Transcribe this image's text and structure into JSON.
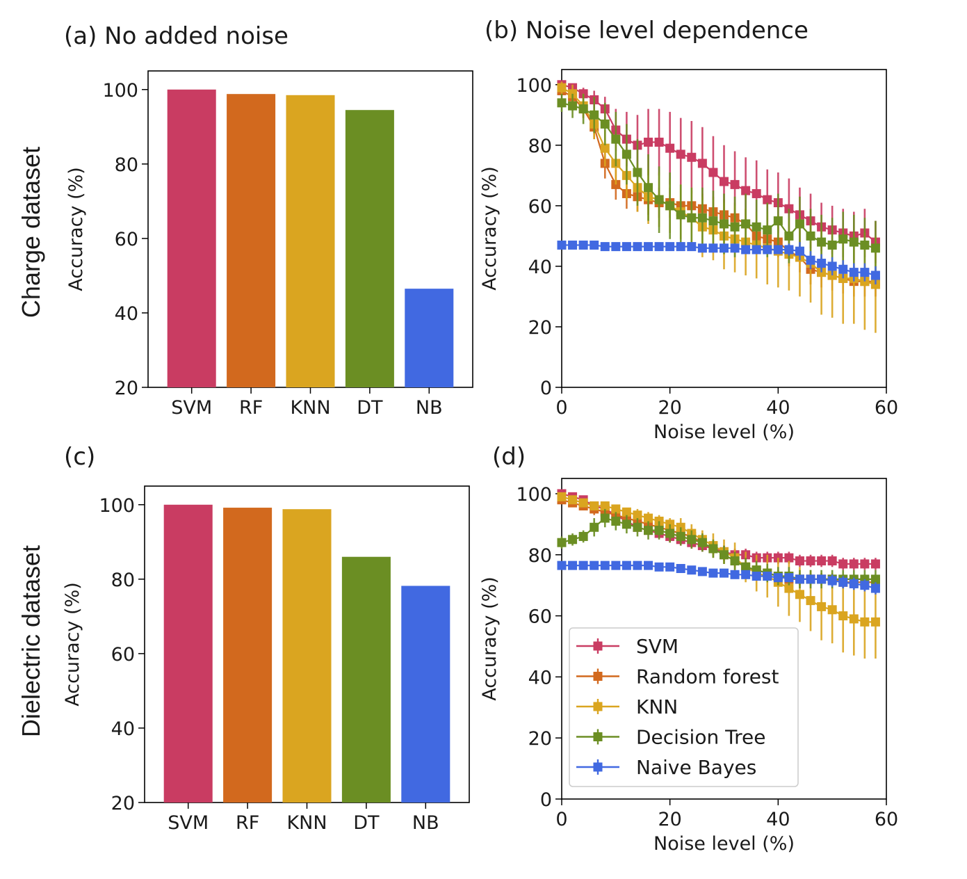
{
  "row_labels": [
    "Charge dataset",
    "Dielectric dataset"
  ],
  "legend": [
    {
      "name": "SVM",
      "color": "#C93C62"
    },
    {
      "name": "Random forest",
      "color": "#D2691E"
    },
    {
      "name": "KNN",
      "color": "#DAA520"
    },
    {
      "name": "Decision Tree",
      "color": "#6B8E23"
    },
    {
      "name": "Naive Bayes",
      "color": "#4169E1"
    }
  ],
  "chart_data": [
    {
      "id": "a",
      "type": "bar",
      "title": "(a) No added noise",
      "categories": [
        "SVM",
        "RF",
        "KNN",
        "DT",
        "NB"
      ],
      "values": [
        100,
        98.8,
        98.5,
        94.5,
        46.5
      ],
      "colors": [
        "#C93C62",
        "#D2691E",
        "#DAA520",
        "#6B8E23",
        "#4169E1"
      ],
      "xlabel": "",
      "ylabel": "Accuracy (%)",
      "ylim": [
        20,
        105
      ],
      "yticks": [
        20,
        40,
        60,
        80,
        100
      ]
    },
    {
      "id": "b",
      "type": "line",
      "title": "(b) Noise level dependence",
      "xlabel": "Noise level (%)",
      "ylabel": "Accuracy (%)",
      "xlim": [
        0,
        60
      ],
      "ylim": [
        0,
        105
      ],
      "xticks": [
        0,
        20,
        40,
        60
      ],
      "yticks": [
        0,
        20,
        40,
        60,
        80,
        100
      ],
      "x": [
        0,
        2,
        4,
        6,
        8,
        10,
        12,
        14,
        16,
        18,
        20,
        22,
        24,
        26,
        28,
        30,
        32,
        34,
        36,
        38,
        40,
        42,
        44,
        46,
        48,
        50,
        52,
        54,
        56,
        58
      ],
      "series": [
        {
          "name": "SVM",
          "color": "#C93C62",
          "values": [
            100,
            99,
            97,
            95,
            92,
            85,
            82,
            80,
            81,
            81,
            79,
            77,
            76,
            74,
            71,
            68,
            67,
            65,
            64,
            62,
            61,
            59,
            57,
            55,
            53,
            52,
            51,
            50,
            51,
            48
          ],
          "err": [
            1,
            1,
            2,
            3,
            4,
            7,
            9,
            10,
            11,
            11,
            12,
            12,
            12,
            12,
            12,
            12,
            11,
            11,
            11,
            10,
            10,
            10,
            9,
            9,
            8,
            8,
            8,
            8,
            8,
            7
          ]
        },
        {
          "name": "Random forest",
          "color": "#D2691E",
          "values": [
            98,
            96,
            92,
            86,
            74,
            67,
            64,
            63,
            62,
            61,
            61,
            60,
            60,
            59,
            58,
            57,
            56,
            54,
            50,
            49,
            48,
            45,
            43,
            39,
            38,
            37,
            36,
            35,
            35,
            35
          ],
          "err": [
            1,
            2,
            3,
            4,
            5,
            5,
            5,
            5,
            5,
            5,
            5,
            5,
            5,
            5,
            5,
            5,
            5,
            5,
            5,
            5,
            5,
            5,
            5,
            5,
            5,
            5,
            5,
            5,
            5,
            5
          ]
        },
        {
          "name": "KNN",
          "color": "#DAA520",
          "values": [
            99,
            97,
            93,
            87,
            79,
            74,
            70,
            66,
            63,
            62,
            60,
            58,
            56,
            53,
            52,
            50,
            49,
            48,
            47,
            46,
            45,
            44,
            43,
            41,
            38,
            37,
            36,
            36,
            35,
            34
          ],
          "err": [
            2,
            3,
            4,
            5,
            6,
            7,
            8,
            8,
            9,
            9,
            9,
            9,
            10,
            10,
            10,
            11,
            11,
            11,
            11,
            12,
            12,
            12,
            13,
            13,
            14,
            14,
            15,
            15,
            16,
            16
          ]
        },
        {
          "name": "Decision Tree",
          "color": "#6B8E23",
          "values": [
            94,
            93,
            92,
            90,
            87,
            82,
            77,
            71,
            66,
            62,
            60,
            57,
            56,
            56,
            55,
            54,
            53,
            54,
            53,
            52,
            55,
            50,
            54,
            50,
            48,
            47,
            49,
            48,
            47,
            46
          ],
          "err": [
            3,
            4,
            5,
            6,
            7,
            9,
            10,
            11,
            11,
            11,
            11,
            10,
            10,
            10,
            10,
            10,
            10,
            10,
            9,
            9,
            9,
            9,
            9,
            9,
            9,
            9,
            9,
            9,
            9,
            9
          ]
        },
        {
          "name": "Naive Bayes",
          "color": "#4169E1",
          "values": [
            47,
            47,
            47,
            47,
            46.5,
            46.5,
            46.5,
            46.5,
            46.5,
            46.5,
            46.5,
            46.5,
            46.5,
            46,
            46,
            46,
            46,
            45.5,
            45.5,
            45.5,
            45.5,
            45.5,
            45,
            42,
            41,
            40,
            39,
            38,
            38,
            37
          ],
          "err": [
            1,
            1,
            1,
            1,
            1,
            1,
            1,
            1,
            1,
            1,
            1,
            1,
            1,
            1,
            1,
            1,
            1,
            1,
            1,
            1,
            1,
            2,
            3,
            3,
            3,
            3,
            3,
            3,
            3,
            3
          ]
        }
      ]
    },
    {
      "id": "c",
      "type": "bar",
      "title": "(c)",
      "categories": [
        "SVM",
        "RF",
        "KNN",
        "DT",
        "NB"
      ],
      "values": [
        100,
        99.2,
        98.8,
        86,
        78.2
      ],
      "colors": [
        "#C93C62",
        "#D2691E",
        "#DAA520",
        "#6B8E23",
        "#4169E1"
      ],
      "xlabel": "",
      "ylabel": "Accuracy (%)",
      "ylim": [
        20,
        105
      ],
      "yticks": [
        20,
        40,
        60,
        80,
        100
      ]
    },
    {
      "id": "d",
      "type": "line",
      "title": "(d)",
      "xlabel": "Noise level (%)",
      "ylabel": "Accuracy (%)",
      "xlim": [
        0,
        60
      ],
      "ylim": [
        0,
        105
      ],
      "xticks": [
        0,
        20,
        40,
        60
      ],
      "yticks": [
        0,
        20,
        40,
        60,
        80,
        100
      ],
      "legend": "lower-left",
      "x": [
        0,
        2,
        4,
        6,
        8,
        10,
        12,
        14,
        16,
        18,
        20,
        22,
        24,
        26,
        28,
        30,
        32,
        34,
        36,
        38,
        40,
        42,
        44,
        46,
        48,
        50,
        52,
        54,
        56,
        58
      ],
      "series": [
        {
          "name": "SVM",
          "color": "#C93C62",
          "values": [
            100,
            99,
            98,
            96,
            95,
            93,
            91,
            89,
            88,
            87,
            86,
            85,
            84,
            83,
            82,
            81,
            80,
            80,
            79,
            79,
            79,
            79,
            78,
            78,
            78,
            78,
            77,
            77,
            77,
            77
          ],
          "err": [
            1,
            1,
            1,
            1,
            1,
            1,
            1,
            1,
            1,
            1,
            2,
            2,
            2,
            2,
            2,
            2,
            2,
            2,
            2,
            2,
            2,
            2,
            2,
            2,
            2,
            2,
            2,
            2,
            2,
            2
          ]
        },
        {
          "name": "Random forest",
          "color": "#D2691E",
          "values": [
            98,
            97,
            96,
            95,
            94,
            93,
            92,
            91,
            90,
            89,
            88,
            87,
            86,
            84,
            82,
            80,
            78,
            76,
            75,
            74,
            73,
            72,
            72,
            72,
            72,
            72,
            71,
            71,
            71,
            71
          ],
          "err": [
            1,
            1,
            1,
            2,
            2,
            2,
            2,
            2,
            2,
            2,
            2,
            2,
            2,
            2,
            2,
            2,
            2,
            2,
            2,
            2,
            2,
            2,
            2,
            2,
            2,
            2,
            2,
            2,
            2,
            2
          ]
        },
        {
          "name": "KNN",
          "color": "#DAA520",
          "values": [
            99,
            98,
            97,
            96,
            96,
            95,
            94,
            93,
            92,
            91,
            90,
            89,
            87,
            85,
            83,
            81,
            79,
            76,
            74,
            73,
            71,
            69,
            67,
            65,
            63,
            62,
            60,
            59,
            58,
            58
          ],
          "err": [
            1,
            1,
            1,
            1,
            1,
            1,
            1,
            2,
            2,
            2,
            2,
            3,
            3,
            3,
            4,
            4,
            5,
            5,
            6,
            7,
            8,
            9,
            9,
            10,
            11,
            11,
            12,
            12,
            12,
            12
          ]
        },
        {
          "name": "Decision Tree",
          "color": "#6B8E23",
          "values": [
            84,
            85,
            86,
            89,
            92,
            91,
            90,
            89,
            88,
            88,
            87,
            86,
            85,
            84,
            82,
            80,
            78,
            76,
            75,
            74,
            73,
            73,
            72,
            72,
            72,
            72,
            72,
            72,
            72,
            72
          ],
          "err": [
            2,
            2,
            2,
            3,
            3,
            3,
            3,
            3,
            3,
            3,
            3,
            3,
            3,
            3,
            3,
            3,
            3,
            3,
            3,
            3,
            3,
            3,
            3,
            3,
            3,
            3,
            3,
            3,
            3,
            3
          ]
        },
        {
          "name": "Naive Bayes",
          "color": "#4169E1",
          "values": [
            76.5,
            76.5,
            76.5,
            76.5,
            76.5,
            76.5,
            76.5,
            76.5,
            76.5,
            76,
            76,
            75.5,
            75,
            74.5,
            74,
            74,
            73.5,
            73.5,
            73,
            73,
            72.5,
            72.5,
            72,
            72,
            72,
            71.5,
            71,
            70.5,
            70,
            69
          ],
          "err": [
            1,
            1,
            1,
            1,
            1,
            1,
            1,
            1,
            1,
            1,
            1,
            1,
            1,
            1,
            1,
            1,
            1,
            1,
            1,
            1,
            1,
            1,
            1,
            1,
            1,
            2,
            2,
            2,
            2,
            2
          ]
        }
      ]
    }
  ]
}
